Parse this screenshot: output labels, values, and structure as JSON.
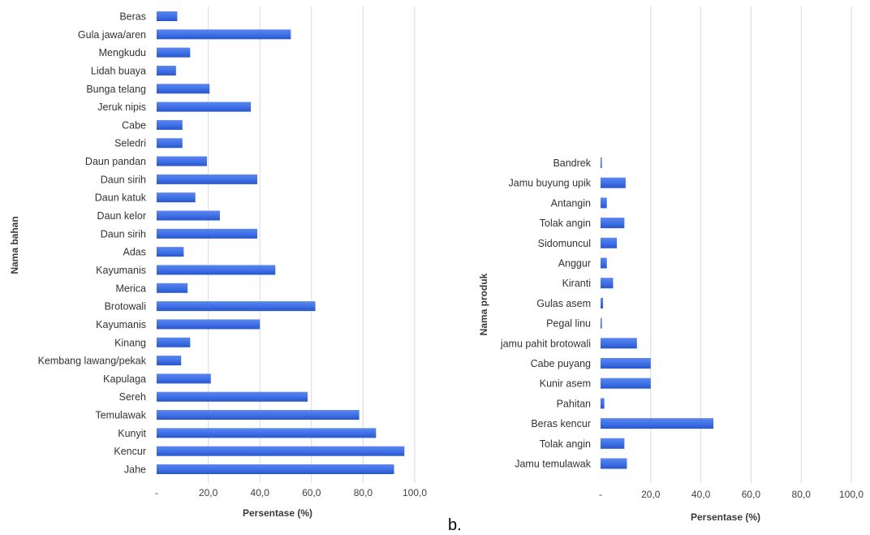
{
  "panel_label": "b.",
  "chart_data": [
    {
      "type": "bar",
      "orientation": "horizontal",
      "categories": [
        "Beras",
        "Gula jawa/aren",
        "Mengkudu",
        "Lidah buaya",
        "Bunga telang",
        "Jeruk nipis",
        "Cabe",
        "Seledri",
        "Daun pandan",
        "Daun sirih",
        "Daun katuk",
        "Daun kelor",
        "Daun sirih",
        "Adas",
        "Kayumanis",
        "Merica",
        "Brotowali",
        "Kayumanis",
        "Kinang",
        "Kembang lawang/pekak",
        "Kapulaga",
        "Sereh",
        "Temulawak",
        "Kunyit",
        "Kencur",
        "Jahe"
      ],
      "values": [
        8,
        52,
        13,
        7.5,
        20.5,
        36.5,
        10,
        10,
        19.5,
        39,
        15,
        24.5,
        39,
        10.5,
        46,
        12,
        61.5,
        40,
        13,
        9.5,
        21,
        58.5,
        78.5,
        85,
        96,
        92
      ],
      "xticks": [
        "-",
        "20,0",
        "40,0",
        "60,0",
        "80,0",
        "100,0"
      ],
      "xlim": [
        0,
        100
      ],
      "xlabel": "Persentase (%)",
      "ylabel": "Nama bahan",
      "grid": true,
      "color": "#3d6fe6"
    },
    {
      "type": "bar",
      "orientation": "horizontal",
      "categories": [
        "Bandrek",
        "Jamu buyung upik",
        "Antangin",
        "Tolak angin",
        "Sidomuncul",
        "Anggur",
        "Kiranti",
        "Gulas asem",
        "Pegal linu",
        "jamu pahit brotowali",
        "Cabe puyang",
        "Kunir asem",
        "Pahitan",
        "Beras kencur",
        "Tolak angin",
        "Jamu temulawak"
      ],
      "values": [
        0.5,
        10,
        2.5,
        9.5,
        6.5,
        2.5,
        5,
        1,
        0.5,
        14.5,
        20,
        20,
        1.5,
        45,
        9.5,
        10.5
      ],
      "xticks": [
        "-",
        "20,0",
        "40,0",
        "60,0",
        "80,0",
        "100,0"
      ],
      "xlim": [
        0,
        100
      ],
      "xlabel": "Persentase (%)",
      "ylabel": "Nama produk",
      "grid": true,
      "color": "#3d6fe6"
    }
  ]
}
